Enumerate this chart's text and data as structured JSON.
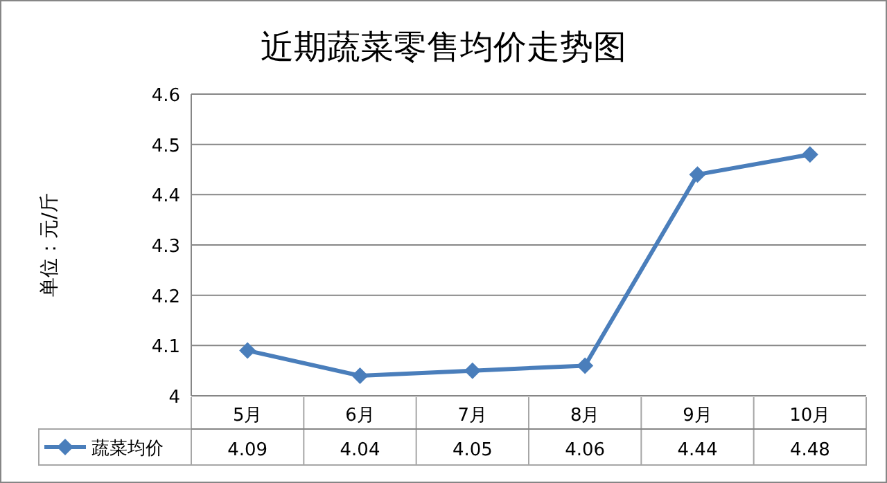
{
  "chart_data": {
    "type": "line",
    "title": "近期蔬菜零售均价走势图",
    "ylabel": "单位：元/斤",
    "categories": [
      "5月",
      "6月",
      "7月",
      "8月",
      "9月",
      "10月"
    ],
    "series": [
      {
        "name": "蔬菜均价",
        "color": "#4a7ebb",
        "values": [
          4.09,
          4.04,
          4.05,
          4.06,
          4.44,
          4.48
        ]
      }
    ],
    "ylim": [
      4,
      4.6
    ],
    "yticks": [
      4,
      4.1,
      4.2,
      4.3,
      4.4,
      4.5,
      4.6
    ],
    "grid": "y",
    "marker": "diamond",
    "line_style": "solid",
    "data_labels": true,
    "legend": "bottom left"
  }
}
